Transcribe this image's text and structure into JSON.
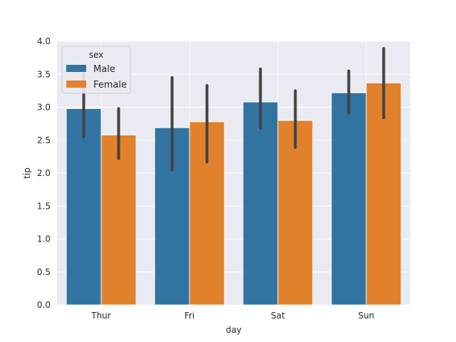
{
  "chart_data": {
    "type": "bar",
    "title": "",
    "xlabel": "day",
    "ylabel": "tip",
    "categories": [
      "Thur",
      "Fri",
      "Sat",
      "Sun"
    ],
    "ylim": [
      0,
      4.0
    ],
    "yticks": [
      "0.0",
      "0.5",
      "1.0",
      "1.5",
      "2.0",
      "2.5",
      "3.0",
      "3.5",
      "4.0"
    ],
    "grid": true,
    "legend": {
      "title": "sex",
      "placement": "top-left"
    },
    "series": [
      {
        "name": "Male",
        "color": "#3274a1",
        "values": [
          2.98,
          2.69,
          3.08,
          3.22
        ],
        "ci": [
          [
            2.55,
            3.51
          ],
          [
            2.05,
            3.45
          ],
          [
            2.68,
            3.58
          ],
          [
            2.91,
            3.55
          ]
        ]
      },
      {
        "name": "Female",
        "color": "#e1812c",
        "values": [
          2.58,
          2.78,
          2.8,
          3.37
        ],
        "ci": [
          [
            2.22,
            2.98
          ],
          [
            2.17,
            3.33
          ],
          [
            2.39,
            3.25
          ],
          [
            2.84,
            3.89
          ]
        ]
      }
    ]
  }
}
